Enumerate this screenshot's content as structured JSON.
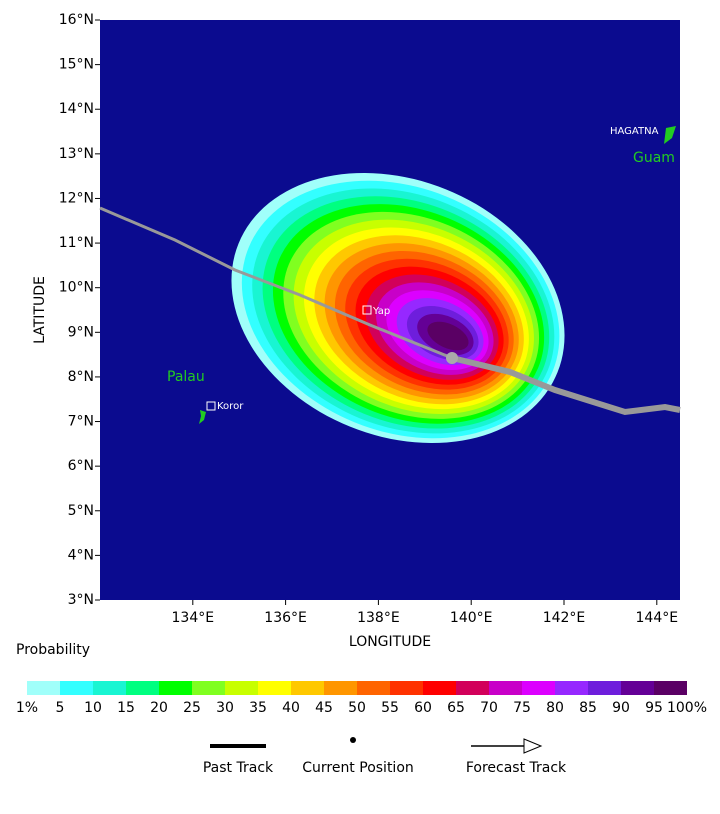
{
  "map": {
    "xlabel": "LONGITUDE",
    "ylabel": "LATITUDE",
    "xlim": [
      132,
      144.5
    ],
    "ylim": [
      3,
      16
    ],
    "xticks": [
      {
        "value": 134,
        "label": "134°E"
      },
      {
        "value": 136,
        "label": "136°E"
      },
      {
        "value": 138,
        "label": "138°E"
      },
      {
        "value": 140,
        "label": "140°E"
      },
      {
        "value": 142,
        "label": "142°E"
      },
      {
        "value": 144,
        "label": "144°E"
      }
    ],
    "yticks": [
      {
        "value": 3,
        "label": "3°N"
      },
      {
        "value": 4,
        "label": "4°N"
      },
      {
        "value": 5,
        "label": "5°N"
      },
      {
        "value": 6,
        "label": "6°N"
      },
      {
        "value": 7,
        "label": "7°N"
      },
      {
        "value": 8,
        "label": "8°N"
      },
      {
        "value": 9,
        "label": "9°N"
      },
      {
        "value": 10,
        "label": "10°N"
      },
      {
        "value": 11,
        "label": "11°N"
      },
      {
        "value": 12,
        "label": "12°N"
      },
      {
        "value": 13,
        "label": "13°N"
      },
      {
        "value": 14,
        "label": "14°N"
      },
      {
        "value": 15,
        "label": "15°N"
      },
      {
        "value": 16,
        "label": "16°N"
      }
    ],
    "places": {
      "yap": "Yap",
      "koror": "Koror",
      "palau": "Palau",
      "guam": "Guam",
      "hagatna": "HAGATNA"
    }
  },
  "colorbar": {
    "title": "Probability",
    "colors": [
      "#a0fffa",
      "#33ffff",
      "#19f5d2",
      "#00ff80",
      "#00ff00",
      "#80ff20",
      "#c8ff00",
      "#ffff00",
      "#ffc800",
      "#ff9600",
      "#ff6400",
      "#ff3200",
      "#ff0000",
      "#d2005a",
      "#c800c8",
      "#dc00ff",
      "#9628ff",
      "#6e1edc",
      "#640096",
      "#5a0064"
    ],
    "labels": [
      "1%",
      "5",
      "10",
      "15",
      "20",
      "25",
      "30",
      "35",
      "40",
      "45",
      "50",
      "55",
      "60",
      "65",
      "70",
      "75",
      "80",
      "85",
      "90",
      "95",
      "100%"
    ]
  },
  "legend": {
    "past": "Past Track",
    "current": "Current Position",
    "forecast": "Forecast Track"
  }
}
